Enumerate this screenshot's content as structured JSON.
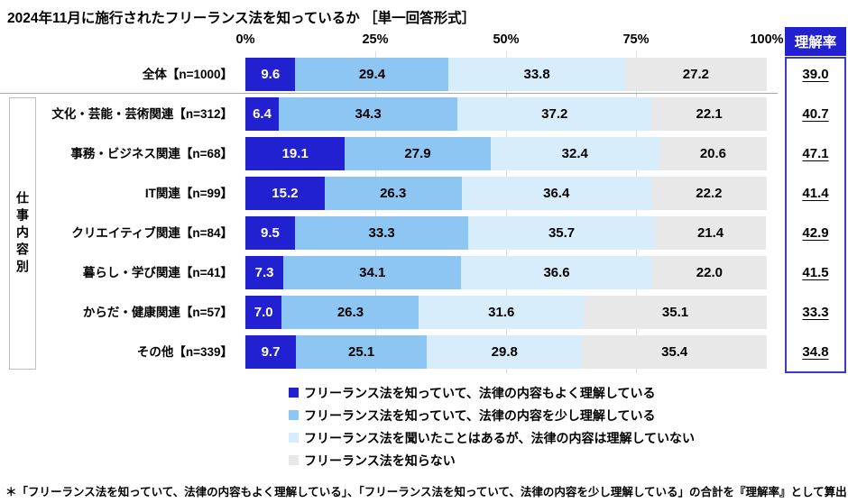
{
  "footnote": "＊「フリーランス法を知っていて、法律の内容もよく理解している」、「フリーランス法を知っていて、法律の内容を少し理解している」の合計を『理解率』として算出",
  "colors": {
    "segment_well_understood": "#2121D1",
    "segment_somewhat_understood": "#8DC6F2",
    "segment_heard_not_understood": "#D7EDFC",
    "segment_unknown": "#E8E8E8",
    "rate_header_bg": "#2121D1",
    "rate_box_border": "#3A3AC8"
  },
  "chart_data": {
    "type": "bar",
    "stacked": true,
    "orientation": "horizontal",
    "title": "2024年11月に施行されたフリーランス法を知っているか ［単一回答形式］",
    "group_label": "仕事内容別",
    "categories": [
      "全体【n=1000】",
      "文化・芸能・芸術関連【n=312】",
      "事務・ビジネス関連【n=68】",
      "IT関連【n=99】",
      "クリエイティブ関連【n=84】",
      "暮らし・学び関連【n=41】",
      "からだ・健康関連【n=57】",
      "その他【n=339】"
    ],
    "series": [
      {
        "name": "フリーランス法を知っていて、法律の内容もよく理解している",
        "color": "#2121D1",
        "values": [
          9.6,
          6.4,
          19.1,
          15.2,
          9.5,
          7.3,
          7.0,
          9.7
        ]
      },
      {
        "name": "フリーランス法を知っていて、法律の内容を少し理解している",
        "color": "#8DC6F2",
        "values": [
          29.4,
          34.3,
          27.9,
          26.3,
          33.3,
          34.1,
          26.3,
          25.1
        ]
      },
      {
        "name": "フリーランス法を聞いたことはあるが、法律の内容は理解していない",
        "color": "#D7EDFC",
        "values": [
          33.8,
          37.2,
          32.4,
          36.4,
          35.7,
          36.6,
          31.6,
          29.8
        ]
      },
      {
        "name": "フリーランス法を知らない",
        "color": "#E8E8E8",
        "values": [
          27.2,
          22.1,
          20.6,
          22.2,
          21.4,
          22.0,
          35.1,
          35.4
        ]
      }
    ],
    "understanding_rate": {
      "header": "理解率",
      "values": [
        39.0,
        40.7,
        47.1,
        41.4,
        42.9,
        41.5,
        33.3,
        34.8
      ]
    },
    "xlim": [
      0,
      100
    ],
    "x_ticks": [
      "0%",
      "25%",
      "50%",
      "75%",
      "100%"
    ],
    "legend_position": "bottom",
    "grid": true
  }
}
